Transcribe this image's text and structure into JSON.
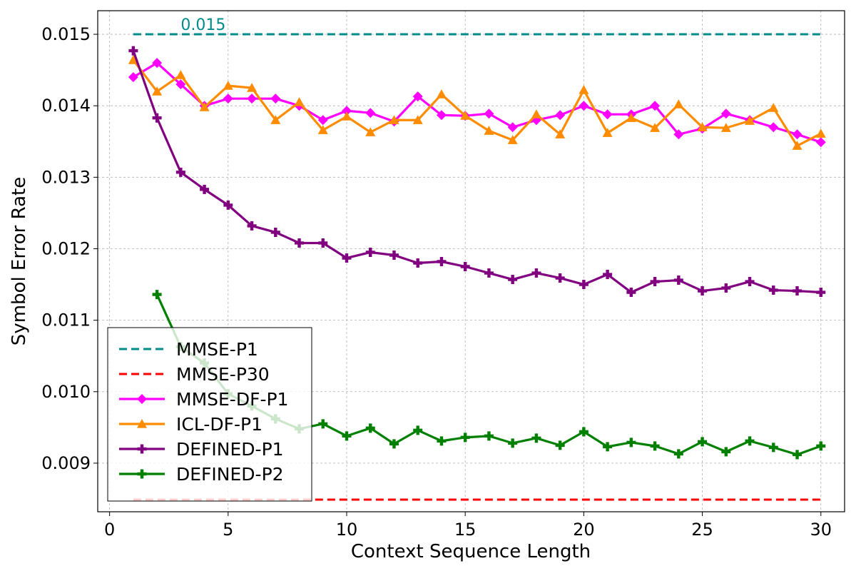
{
  "chart_data": {
    "type": "line",
    "title": "",
    "xlabel": "Context Sequence Length",
    "ylabel": "Symbol Error Rate",
    "xlim": [
      -0.5,
      31
    ],
    "ylim": [
      0.00832,
      0.01533
    ],
    "xticks": [
      0,
      5,
      10,
      15,
      20,
      25,
      30
    ],
    "xtick_labels": [
      "0",
      "5",
      "10",
      "15",
      "20",
      "25",
      "30"
    ],
    "yticks": [
      0.009,
      0.01,
      0.011,
      0.012,
      0.013,
      0.014,
      0.015
    ],
    "ytick_labels": [
      "0.009",
      "0.010",
      "0.011",
      "0.012",
      "0.013",
      "0.014",
      "0.015"
    ],
    "grid": true,
    "legend_location": "lower-left",
    "annotation": {
      "text": "0.015",
      "x": 3,
      "y": 0.015,
      "color": "#008b8b"
    },
    "series": [
      {
        "name": "MMSE-P1",
        "color": "#008b8b",
        "style": "dashed",
        "marker": "none",
        "x": [
          1,
          30
        ],
        "values": [
          0.015,
          0.015
        ]
      },
      {
        "name": "MMSE-P30",
        "color": "#ff0000",
        "style": "dashed",
        "marker": "none",
        "x": [
          1,
          30
        ],
        "values": [
          0.00849,
          0.00849
        ]
      },
      {
        "name": "MMSE-DF-P1",
        "color": "#ff00ff",
        "style": "solid",
        "marker": "diamond",
        "x": [
          1,
          2,
          3,
          4,
          5,
          6,
          7,
          8,
          9,
          10,
          11,
          12,
          13,
          14,
          15,
          16,
          17,
          18,
          19,
          20,
          21,
          22,
          23,
          24,
          25,
          26,
          27,
          28,
          29,
          30
        ],
        "values": [
          0.0144,
          0.0146,
          0.0143,
          0.014,
          0.0141,
          0.0141,
          0.0141,
          0.014,
          0.0138,
          0.01393,
          0.0139,
          0.01378,
          0.01413,
          0.01387,
          0.01386,
          0.01389,
          0.0137,
          0.0138,
          0.01387,
          0.014,
          0.01388,
          0.01388,
          0.014,
          0.0136,
          0.01368,
          0.01389,
          0.0138,
          0.0137,
          0.0136,
          0.01349
        ]
      },
      {
        "name": "ICL-DF-P1",
        "color": "#ff8c00",
        "style": "solid",
        "marker": "triangle",
        "x": [
          1,
          2,
          3,
          4,
          5,
          6,
          7,
          8,
          9,
          10,
          11,
          12,
          13,
          14,
          15,
          16,
          17,
          18,
          19,
          20,
          21,
          22,
          23,
          24,
          25,
          26,
          27,
          28,
          29,
          30
        ],
        "values": [
          0.01464,
          0.0142,
          0.01443,
          0.01398,
          0.01428,
          0.01425,
          0.0138,
          0.01405,
          0.01366,
          0.01385,
          0.01363,
          0.0138,
          0.0138,
          0.01416,
          0.01386,
          0.01365,
          0.01352,
          0.01388,
          0.0136,
          0.01422,
          0.01362,
          0.01383,
          0.01369,
          0.01402,
          0.0137,
          0.01369,
          0.01379,
          0.01397,
          0.01344,
          0.01361
        ]
      },
      {
        "name": "DEFINED-P1",
        "color": "#800080",
        "style": "solid",
        "marker": "plus",
        "x": [
          1,
          2,
          3,
          4,
          5,
          6,
          7,
          8,
          9,
          10,
          11,
          12,
          13,
          14,
          15,
          16,
          17,
          18,
          19,
          20,
          21,
          22,
          23,
          24,
          25,
          26,
          27,
          28,
          29,
          30
        ],
        "values": [
          0.01477,
          0.01383,
          0.01307,
          0.01283,
          0.01261,
          0.01232,
          0.01223,
          0.01208,
          0.01208,
          0.01187,
          0.01195,
          0.01191,
          0.0118,
          0.01182,
          0.01175,
          0.01166,
          0.01157,
          0.01166,
          0.01159,
          0.0115,
          0.01164,
          0.01139,
          0.01154,
          0.01156,
          0.01141,
          0.01145,
          0.01154,
          0.01142,
          0.01141,
          0.01139
        ]
      },
      {
        "name": "DEFINED-P2",
        "color": "#008000",
        "style": "solid",
        "marker": "plus",
        "x": [
          2,
          3,
          4,
          5,
          6,
          7,
          8,
          9,
          10,
          11,
          12,
          13,
          14,
          15,
          16,
          17,
          18,
          19,
          20,
          21,
          22,
          23,
          24,
          25,
          26,
          27,
          28,
          29,
          30
        ],
        "values": [
          0.01136,
          0.01063,
          0.0104,
          0.00997,
          0.0098,
          0.00962,
          0.00948,
          0.00955,
          0.00938,
          0.00949,
          0.00927,
          0.00946,
          0.00931,
          0.00936,
          0.00938,
          0.00928,
          0.00935,
          0.00925,
          0.00944,
          0.00923,
          0.00929,
          0.00924,
          0.00913,
          0.0093,
          0.00916,
          0.00931,
          0.00922,
          0.00912,
          0.00924
        ]
      }
    ]
  }
}
